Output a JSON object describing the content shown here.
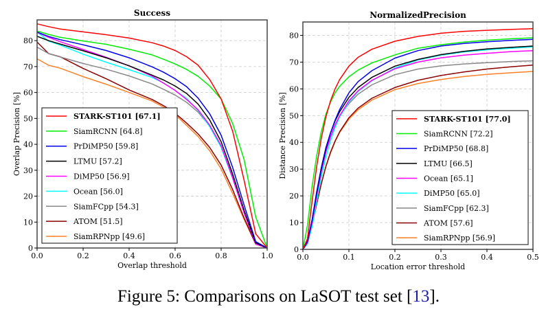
{
  "chart_data": [
    {
      "type": "line",
      "title": "Success",
      "xlabel": "Overlap threshold",
      "ylabel": "Overlap Precision [%]",
      "xlim": [
        0.0,
        1.0
      ],
      "ylim": [
        0,
        88
      ],
      "xticks": [
        "0.0",
        "0.2",
        "0.4",
        "0.6",
        "0.8",
        "1.0"
      ],
      "yticks": [
        "0",
        "10",
        "20",
        "30",
        "40",
        "50",
        "60",
        "70",
        "80"
      ],
      "grid": true,
      "legend_position": "lower-left",
      "x": [
        0.0,
        0.05,
        0.1,
        0.2,
        0.3,
        0.4,
        0.5,
        0.55,
        0.6,
        0.65,
        0.7,
        0.75,
        0.8,
        0.85,
        0.9,
        0.95,
        1.0
      ],
      "series": [
        {
          "name": "STARK-ST101 [67.1]",
          "color": "#ff0000",
          "bold": true,
          "values": [
            86.5,
            85.4,
            84.5,
            83.4,
            82.3,
            81.0,
            79.2,
            77.9,
            76.2,
            73.8,
            70.5,
            65.0,
            57.5,
            45.0,
            26.0,
            5.5,
            0.0
          ]
        },
        {
          "name": "SiamRCNN [64.8]",
          "color": "#00ee00",
          "values": [
            83.7,
            82.4,
            81.3,
            79.9,
            78.6,
            76.7,
            74.5,
            72.8,
            71.0,
            68.9,
            66.2,
            62.5,
            57.5,
            48.0,
            34.0,
            12.0,
            0.0
          ]
        },
        {
          "name": "PrDiMP50 [59.8]",
          "color": "#0000ee",
          "values": [
            83.3,
            81.6,
            80.4,
            78.4,
            76.2,
            73.4,
            69.9,
            67.8,
            65.3,
            62.2,
            57.8,
            51.8,
            43.5,
            31.0,
            16.5,
            2.5,
            0.0
          ]
        },
        {
          "name": "LTMU [57.2]",
          "color": "#000000",
          "values": [
            81.7,
            80.0,
            78.7,
            76.1,
            73.4,
            70.3,
            66.7,
            64.8,
            62.5,
            59.6,
            55.5,
            49.4,
            41.0,
            28.5,
            14.5,
            2.0,
            0.0
          ]
        },
        {
          "name": "DiMP50 [56.9]",
          "color": "#ff00ff",
          "values": [
            83.2,
            81.3,
            79.6,
            76.6,
            73.6,
            70.3,
            66.3,
            63.6,
            60.8,
            57.3,
            53.3,
            47.4,
            39.5,
            27.0,
            13.5,
            1.5,
            0.0
          ]
        },
        {
          "name": "Ocean [56.0]",
          "color": "#00ffff",
          "values": [
            83.3,
            79.8,
            78.3,
            74.8,
            71.7,
            68.8,
            65.8,
            63.7,
            60.8,
            57.7,
            53.0,
            46.8,
            38.8,
            26.8,
            13.5,
            1.8,
            0.0
          ]
        },
        {
          "name": "SiamFCpp [54.3]",
          "color": "#888888",
          "values": [
            77.5,
            75.0,
            73.7,
            71.2,
            69.0,
            66.4,
            63.3,
            61.2,
            59.0,
            56.2,
            52.4,
            47.0,
            39.2,
            27.5,
            14.0,
            2.0,
            0.0
          ]
        },
        {
          "name": "ATOM [51.5]",
          "color": "#8b0000",
          "values": [
            79.5,
            75.0,
            73.8,
            69.3,
            65.3,
            61.0,
            57.3,
            54.9,
            52.0,
            48.2,
            44.0,
            38.8,
            32.0,
            22.5,
            11.5,
            1.5,
            0.0
          ]
        },
        {
          "name": "SiamRPNpp [49.6]",
          "color": "#ff7f24",
          "values": [
            73.0,
            70.5,
            69.4,
            66.1,
            63.2,
            60.0,
            56.7,
            54.3,
            51.5,
            47.3,
            43.0,
            37.5,
            30.5,
            21.0,
            11.0,
            1.5,
            0.0
          ]
        }
      ]
    },
    {
      "type": "line",
      "title": "NormalizedPrecision",
      "xlabel": "Location error threshold",
      "ylabel": "Distance Precision [%]",
      "xlim": [
        0.0,
        0.5
      ],
      "ylim": [
        0,
        85
      ],
      "xticks": [
        "0.0",
        "0.1",
        "0.2",
        "0.3",
        "0.4",
        "0.5"
      ],
      "yticks": [
        "0",
        "10",
        "20",
        "30",
        "40",
        "50",
        "60",
        "70",
        "80"
      ],
      "grid": true,
      "legend_position": "lower-right",
      "x": [
        0.0,
        0.01,
        0.02,
        0.03,
        0.04,
        0.05,
        0.06,
        0.07,
        0.08,
        0.1,
        0.12,
        0.15,
        0.2,
        0.25,
        0.3,
        0.35,
        0.4,
        0.45,
        0.5
      ],
      "series": [
        {
          "name": "STARK-ST101 [77.0]",
          "color": "#ff0000",
          "bold": true,
          "values": [
            0.0,
            4.0,
            18.0,
            31.0,
            41.5,
            49.5,
            55.5,
            60.0,
            63.5,
            68.5,
            71.8,
            74.8,
            77.8,
            79.6,
            80.8,
            81.5,
            81.9,
            82.2,
            82.5
          ]
        },
        {
          "name": "SiamRCNN [72.2]",
          "color": "#00ee00",
          "values": [
            0.0,
            9.0,
            23.5,
            35.0,
            44.0,
            50.5,
            55.0,
            58.5,
            61.0,
            64.5,
            67.0,
            69.7,
            72.7,
            75.2,
            76.5,
            77.5,
            78.2,
            78.7,
            79.1
          ]
        },
        {
          "name": "PrDiMP50 [68.8]",
          "color": "#0000ee",
          "values": [
            0.0,
            3.0,
            11.0,
            21.0,
            30.0,
            37.5,
            43.5,
            48.3,
            52.3,
            58.5,
            62.7,
            66.8,
            71.5,
            74.3,
            76.0,
            77.0,
            77.6,
            78.1,
            78.5
          ]
        },
        {
          "name": "LTMU [66.5]",
          "color": "#000000",
          "values": [
            0.0,
            3.0,
            11.0,
            21.5,
            30.5,
            38.0,
            43.5,
            48.0,
            51.5,
            56.8,
            60.5,
            64.3,
            68.5,
            71.0,
            72.8,
            74.0,
            74.9,
            75.5,
            76.0
          ]
        },
        {
          "name": "Ocean [65.1]",
          "color": "#ff00ff",
          "values": [
            0.0,
            2.5,
            10.0,
            20.0,
            29.0,
            36.5,
            42.0,
            46.5,
            50.0,
            55.5,
            59.3,
            63.2,
            67.5,
            70.0,
            71.6,
            72.6,
            73.3,
            73.9,
            74.3
          ]
        },
        {
          "name": "DiMP50 [65.0]",
          "color": "#00ffff",
          "values": [
            0.0,
            2.0,
            8.5,
            18.0,
            27.0,
            34.5,
            40.5,
            45.5,
            49.5,
            55.0,
            59.0,
            63.0,
            67.8,
            70.8,
            72.6,
            73.8,
            74.6,
            75.2,
            75.7
          ]
        },
        {
          "name": "SiamFCpp [62.3]",
          "color": "#888888",
          "values": [
            0.0,
            2.5,
            10.0,
            20.0,
            29.0,
            36.5,
            42.0,
            46.5,
            50.0,
            54.5,
            58.0,
            61.5,
            65.3,
            67.4,
            68.6,
            69.3,
            69.8,
            70.2,
            70.5
          ]
        },
        {
          "name": "ATOM [57.6]",
          "color": "#8b0000",
          "values": [
            0.0,
            2.5,
            9.0,
            17.0,
            24.5,
            31.0,
            36.3,
            40.5,
            44.0,
            49.2,
            52.8,
            56.5,
            60.5,
            63.2,
            65.0,
            66.3,
            67.4,
            68.2,
            68.9
          ]
        },
        {
          "name": "SiamRPNpp [56.9]",
          "color": "#ff7f24",
          "values": [
            0.0,
            2.5,
            9.0,
            17.0,
            24.5,
            31.0,
            36.0,
            40.3,
            43.7,
            48.7,
            52.2,
            55.8,
            59.7,
            62.0,
            63.5,
            64.6,
            65.4,
            66.0,
            66.5
          ]
        }
      ]
    }
  ],
  "caption": {
    "text": "Figure 5: Comparisons on LaSOT test set [",
    "ref": "13",
    "end": "]."
  }
}
